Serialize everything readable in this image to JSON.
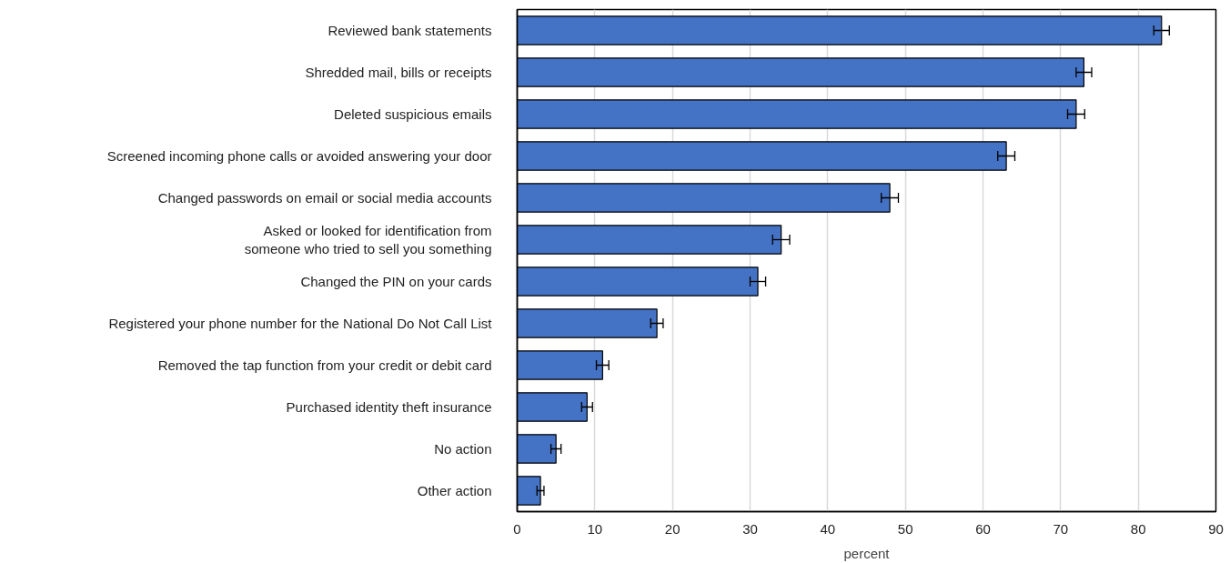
{
  "chart_data": {
    "type": "bar",
    "orientation": "horizontal",
    "xlabel": "percent",
    "categories": [
      "Reviewed bank statements",
      "Shredded mail, bills or receipts",
      "Deleted suspicious emails",
      "Screened incoming phone calls or avoided answering your door",
      "Changed passwords on email or social media accounts",
      "Asked or looked for identification from\nsomeone who tried to sell you something",
      "Changed the PIN on your cards",
      "Registered your phone number for the National Do Not Call List",
      "Removed the tap function from your credit or debit card",
      "Purchased identity theft insurance",
      "No action",
      "Other action"
    ],
    "values": [
      83,
      73,
      72,
      63,
      48,
      34,
      31,
      18,
      11,
      9,
      5,
      3
    ],
    "errors": [
      1.0,
      1.0,
      1.1,
      1.1,
      1.1,
      1.1,
      1.0,
      0.8,
      0.8,
      0.7,
      0.65,
      0.45
    ],
    "color": "#4472c4",
    "xlim": [
      0,
      90
    ],
    "xticks": [
      0,
      10,
      20,
      30,
      40,
      50,
      60,
      70,
      80,
      90
    ],
    "grid": "x"
  }
}
